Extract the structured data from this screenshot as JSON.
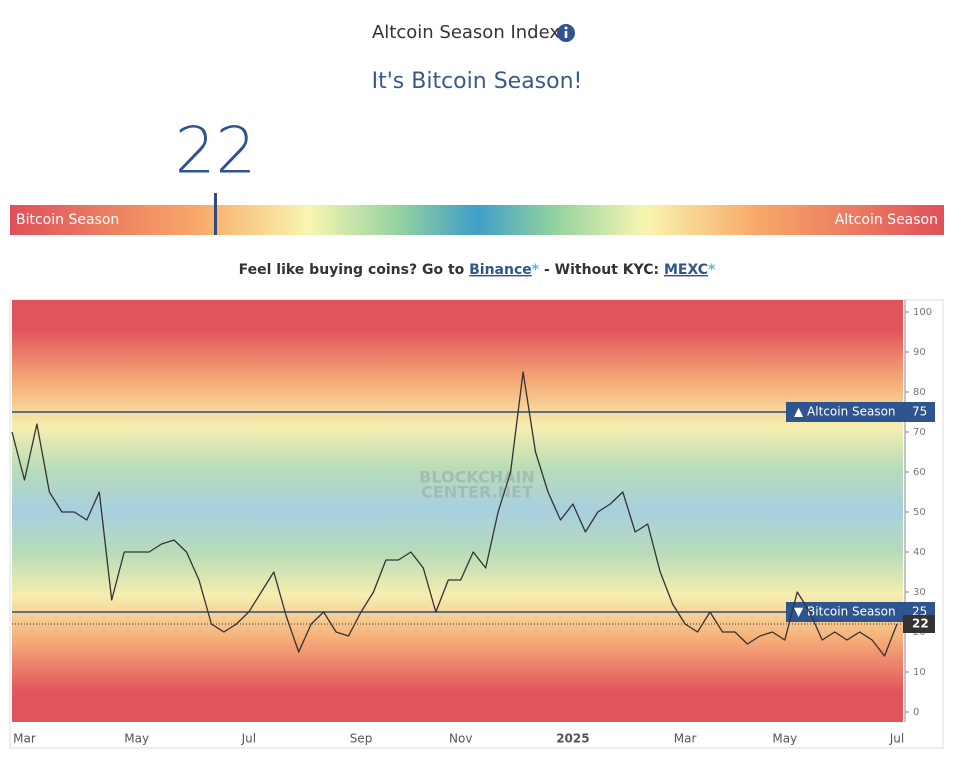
{
  "header": {
    "title": "Altcoin Season Index",
    "subtitle": "It's Bitcoin Season!"
  },
  "gauge": {
    "value": 22,
    "range": [
      0,
      100
    ],
    "left_label": "Bitcoin Season",
    "right_label": "Altcoin Season"
  },
  "promo": {
    "text": "Feel like buying coins? Go to",
    "link1": "Binance",
    "star": "*",
    "middle": "- Without KYC:",
    "link2": "MEXC"
  },
  "chart_data": {
    "type": "line",
    "watermark": [
      "BLOCKCHAIN",
      "CENTER.NET"
    ],
    "categories": [
      null,
      "Mar",
      null,
      null,
      null,
      null,
      null,
      null,
      null,
      null,
      "May",
      null,
      null,
      null,
      null,
      null,
      null,
      null,
      null,
      "Jul",
      null,
      null,
      null,
      null,
      null,
      null,
      null,
      null,
      "Sep",
      null,
      null,
      null,
      null,
      null,
      null,
      null,
      "Nov",
      null,
      null,
      null,
      null,
      null,
      null,
      null,
      null,
      "2025",
      null,
      null,
      null,
      null,
      null,
      null,
      null,
      null,
      "Mar",
      null,
      null,
      null,
      null,
      null,
      null,
      null,
      "May",
      null,
      null,
      null,
      null,
      null,
      null,
      null,
      null,
      "Jul"
    ],
    "values": [
      70,
      58,
      72,
      55,
      50,
      50,
      48,
      55,
      28,
      40,
      40,
      40,
      42,
      43,
      40,
      33,
      22,
      20,
      22,
      25,
      30,
      35,
      24,
      15,
      22,
      25,
      20,
      19,
      25,
      30,
      38,
      38,
      40,
      36,
      25,
      33,
      33,
      40,
      36,
      50,
      60,
      85,
      65,
      55,
      48,
      52,
      45,
      50,
      52,
      55,
      45,
      47,
      35,
      27,
      22,
      20,
      25,
      20,
      20,
      17,
      19,
      20,
      18,
      30,
      25,
      18,
      20,
      18,
      20,
      18,
      14,
      22
    ],
    "color": "#333333",
    "ylim": [
      -2.5,
      103
    ],
    "yticks": [
      0,
      10,
      20,
      30,
      40,
      50,
      60,
      70,
      80,
      90,
      100
    ],
    "reference_lines": [
      {
        "value": 75,
        "label": "▲ Altcoin Season"
      },
      {
        "value": 25,
        "label": "▼ Bitcoin Season"
      }
    ]
  }
}
